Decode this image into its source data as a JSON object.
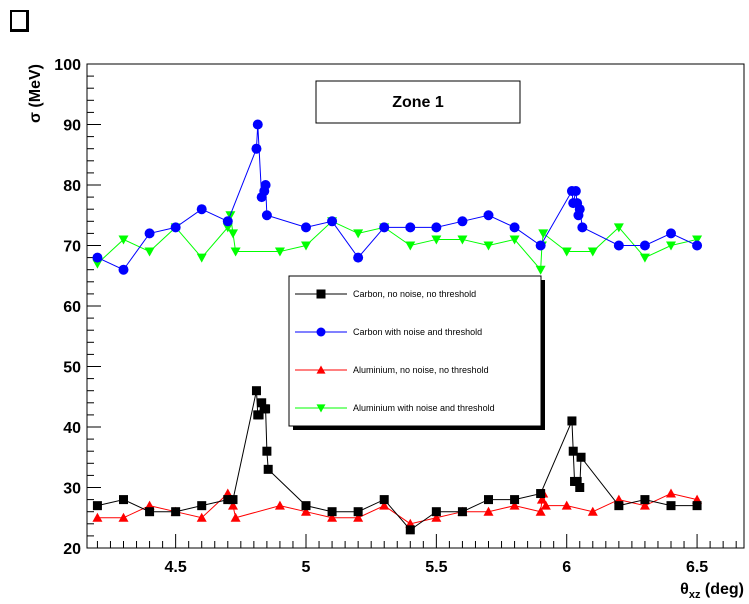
{
  "chart_data": {
    "type": "line",
    "title": "Zone 1",
    "xlabel_main": "θ",
    "xlabel_sub": "xz",
    "xlabel_unit": " (deg)",
    "ylabel": "σ (MeV)",
    "xlim": [
      4.16,
      6.68
    ],
    "ylim": [
      20,
      100
    ],
    "x_ticks": [
      4.5,
      5,
      5.5,
      6,
      6.5
    ],
    "x_tick_labels": [
      "4.5",
      "5",
      "5.5",
      "6",
      "6.5"
    ],
    "y_ticks": [
      20,
      30,
      40,
      50,
      60,
      70,
      80,
      90,
      100
    ],
    "y_tick_labels": [
      "20",
      "30",
      "40",
      "50",
      "60",
      "70",
      "80",
      "90",
      "100"
    ],
    "legend_position": "center",
    "series": [
      {
        "name": "Carbon, no noise, no threshold",
        "color": "#000000",
        "marker": "square",
        "points": [
          [
            4.2,
            27
          ],
          [
            4.3,
            28
          ],
          [
            4.4,
            26
          ],
          [
            4.5,
            26
          ],
          [
            4.6,
            27
          ],
          [
            4.7,
            28
          ],
          [
            4.72,
            28
          ],
          [
            4.81,
            46
          ],
          [
            4.815,
            42
          ],
          [
            4.82,
            42
          ],
          [
            4.83,
            44
          ],
          [
            4.84,
            43
          ],
          [
            4.845,
            43
          ],
          [
            4.85,
            36
          ],
          [
            4.855,
            33
          ],
          [
            5.0,
            27
          ],
          [
            5.1,
            26
          ],
          [
            5.2,
            26
          ],
          [
            5.3,
            28
          ],
          [
            5.4,
            23
          ],
          [
            5.5,
            26
          ],
          [
            5.6,
            26
          ],
          [
            5.7,
            28
          ],
          [
            5.8,
            28
          ],
          [
            5.9,
            29
          ],
          [
            6.02,
            41
          ],
          [
            6.025,
            36
          ],
          [
            6.03,
            31
          ],
          [
            6.04,
            31
          ],
          [
            6.05,
            30
          ],
          [
            6.055,
            35
          ],
          [
            6.2,
            27
          ],
          [
            6.3,
            28
          ],
          [
            6.4,
            27
          ],
          [
            6.5,
            27
          ]
        ]
      },
      {
        "name": "Carbon with noise and threshold",
        "color": "#0000ff",
        "marker": "circle",
        "points": [
          [
            4.2,
            68
          ],
          [
            4.3,
            66
          ],
          [
            4.4,
            72
          ],
          [
            4.5,
            73
          ],
          [
            4.6,
            76
          ],
          [
            4.7,
            74
          ],
          [
            4.81,
            86
          ],
          [
            4.815,
            90
          ],
          [
            4.83,
            78
          ],
          [
            4.84,
            79
          ],
          [
            4.845,
            80
          ],
          [
            4.85,
            75
          ],
          [
            5.0,
            73
          ],
          [
            5.1,
            74
          ],
          [
            5.2,
            68
          ],
          [
            5.3,
            73
          ],
          [
            5.4,
            73
          ],
          [
            5.5,
            73
          ],
          [
            5.6,
            74
          ],
          [
            5.7,
            75
          ],
          [
            5.8,
            73
          ],
          [
            5.9,
            70
          ],
          [
            6.02,
            79
          ],
          [
            6.025,
            77
          ],
          [
            6.035,
            79
          ],
          [
            6.04,
            77
          ],
          [
            6.045,
            75
          ],
          [
            6.05,
            76
          ],
          [
            6.06,
            73
          ],
          [
            6.2,
            70
          ],
          [
            6.3,
            70
          ],
          [
            6.4,
            72
          ],
          [
            6.5,
            70
          ]
        ]
      },
      {
        "name": "Aluminium, no noise, no threshold",
        "color": "#ff0000",
        "marker": "triangle-up",
        "points": [
          [
            4.2,
            25
          ],
          [
            4.3,
            25
          ],
          [
            4.4,
            27
          ],
          [
            4.5,
            26
          ],
          [
            4.6,
            25
          ],
          [
            4.7,
            29
          ],
          [
            4.71,
            28
          ],
          [
            4.72,
            27
          ],
          [
            4.73,
            25
          ],
          [
            4.9,
            27
          ],
          [
            5.0,
            26
          ],
          [
            5.1,
            25
          ],
          [
            5.2,
            25
          ],
          [
            5.3,
            27
          ],
          [
            5.4,
            24
          ],
          [
            5.5,
            25
          ],
          [
            5.6,
            26
          ],
          [
            5.7,
            26
          ],
          [
            5.8,
            27
          ],
          [
            5.9,
            26
          ],
          [
            5.905,
            28
          ],
          [
            5.91,
            29
          ],
          [
            5.92,
            27
          ],
          [
            6.0,
            27
          ],
          [
            6.1,
            26
          ],
          [
            6.2,
            28
          ],
          [
            6.3,
            27
          ],
          [
            6.4,
            29
          ],
          [
            6.5,
            28
          ]
        ]
      },
      {
        "name": "Aluminium with noise and threshold",
        "color": "#00ff00",
        "marker": "triangle-down",
        "points": [
          [
            4.2,
            67
          ],
          [
            4.3,
            71
          ],
          [
            4.4,
            69
          ],
          [
            4.5,
            73
          ],
          [
            4.6,
            68
          ],
          [
            4.7,
            73
          ],
          [
            4.71,
            75
          ],
          [
            4.72,
            72
          ],
          [
            4.73,
            69
          ],
          [
            4.9,
            69
          ],
          [
            5.0,
            70
          ],
          [
            5.1,
            74
          ],
          [
            5.2,
            72
          ],
          [
            5.3,
            73
          ],
          [
            5.4,
            70
          ],
          [
            5.5,
            71
          ],
          [
            5.6,
            71
          ],
          [
            5.7,
            70
          ],
          [
            5.8,
            71
          ],
          [
            5.9,
            66
          ],
          [
            5.905,
            70
          ],
          [
            5.91,
            72
          ],
          [
            6.0,
            69
          ],
          [
            6.1,
            69
          ],
          [
            6.2,
            73
          ],
          [
            6.3,
            68
          ],
          [
            6.4,
            70
          ],
          [
            6.5,
            71
          ]
        ]
      }
    ]
  }
}
